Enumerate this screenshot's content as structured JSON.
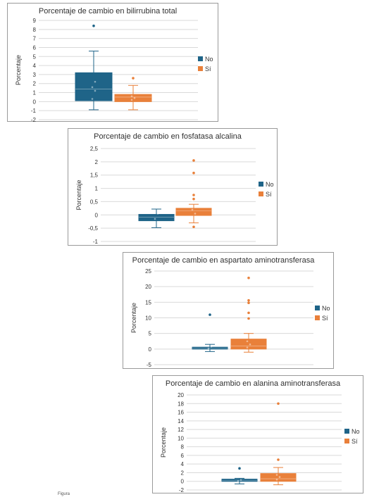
{
  "legend": {
    "no_color": "#1f6488",
    "si_color": "#e9803a"
  },
  "figure_caption": "Figura",
  "chart_data": [
    {
      "type": "box",
      "title": "Porcentaje de cambio en bilirrubina total",
      "ylabel": "Porcentaje",
      "ylim": [
        -2,
        9
      ],
      "yticks": [
        "-2",
        "-1",
        "0",
        "1",
        "2",
        "3",
        "4",
        "5",
        "6",
        "7",
        "8",
        "9"
      ],
      "legend_position": "right",
      "series": [
        {
          "name": "No",
          "color": "#1f6488",
          "q1": 0.1,
          "median": 1.4,
          "q3": 3.2,
          "whisker_low": -0.9,
          "whisker_high": 5.6,
          "outliers": [
            8.4
          ],
          "points": [
            0.3,
            1.2,
            1.6,
            2.2
          ]
        },
        {
          "name": "Sí",
          "color": "#e9803a",
          "q1": 0.0,
          "median": 0.5,
          "q3": 0.8,
          "whisker_low": -0.9,
          "whisker_high": 1.8,
          "outliers": [
            2.6
          ],
          "points": [
            0.2,
            0.4,
            0.6
          ]
        }
      ]
    },
    {
      "type": "box",
      "title": "Porcentaje de cambio en fosfatasa alcalina",
      "ylabel": "Porcentaje",
      "ylim": [
        -1,
        2.5
      ],
      "yticks": [
        "-1",
        "-0,5",
        "0",
        "0,5",
        "1",
        "1,5",
        "2",
        "2,5"
      ],
      "legend_position": "right",
      "series": [
        {
          "name": "No",
          "color": "#1f6488",
          "q1": -0.22,
          "median": -0.08,
          "q3": 0.02,
          "whisker_low": -0.48,
          "whisker_high": 0.22,
          "outliers": [],
          "points": [
            -0.15,
            0.05,
            0.12
          ]
        },
        {
          "name": "Sí",
          "color": "#e9803a",
          "q1": -0.02,
          "median": 0.15,
          "q3": 0.25,
          "whisker_low": -0.3,
          "whisker_high": 0.4,
          "outliers": [
            2.05,
            1.58,
            0.75,
            0.6,
            -0.45
          ],
          "points": [
            -0.1,
            0.05,
            0.2,
            0.3,
            0.5
          ]
        }
      ]
    },
    {
      "type": "box",
      "title": "Porcentaje de cambio en aspartato aminotransferasa",
      "ylabel": "Porcentaje",
      "ylim": [
        -5,
        25
      ],
      "yticks": [
        "-5",
        "0",
        "5",
        "10",
        "15",
        "20",
        "25"
      ],
      "legend_position": "right",
      "series": [
        {
          "name": "No",
          "color": "#1f6488",
          "q1": 0.0,
          "median": 0.3,
          "q3": 0.6,
          "whisker_low": -0.8,
          "whisker_high": 1.5,
          "outliers": [
            11.0
          ],
          "points": [
            0.2,
            0.8
          ]
        },
        {
          "name": "Sí",
          "color": "#e9803a",
          "q1": 0.0,
          "median": 1.0,
          "q3": 3.2,
          "whisker_low": -1.0,
          "whisker_high": 5.0,
          "outliers": [
            22.8,
            15.6,
            14.8,
            11.6,
            9.8
          ],
          "points": [
            0.5,
            1.5,
            2.5,
            3.8,
            4.2
          ]
        }
      ]
    },
    {
      "type": "box",
      "title": "Porcentaje de cambio en alanina aminotransferasa",
      "ylabel": "Porcentaje",
      "ylim": [
        -2,
        20
      ],
      "yticks": [
        "-2",
        "0",
        "2",
        "4",
        "6",
        "8",
        "10",
        "12",
        "14",
        "16",
        "18",
        "20"
      ],
      "legend_position": "right",
      "series": [
        {
          "name": "No",
          "color": "#1f6488",
          "q1": 0.0,
          "median": 0.2,
          "q3": 0.5,
          "whisker_low": -0.6,
          "whisker_high": 0.7,
          "outliers": [
            3.0
          ],
          "points": [
            0.1,
            0.3
          ]
        },
        {
          "name": "Sí",
          "color": "#e9803a",
          "q1": 0.0,
          "median": 0.6,
          "q3": 1.8,
          "whisker_low": -0.8,
          "whisker_high": 3.2,
          "outliers": [
            18.0,
            5.0
          ],
          "points": [
            0.4,
            1.0,
            1.5,
            2.5
          ]
        }
      ]
    }
  ]
}
